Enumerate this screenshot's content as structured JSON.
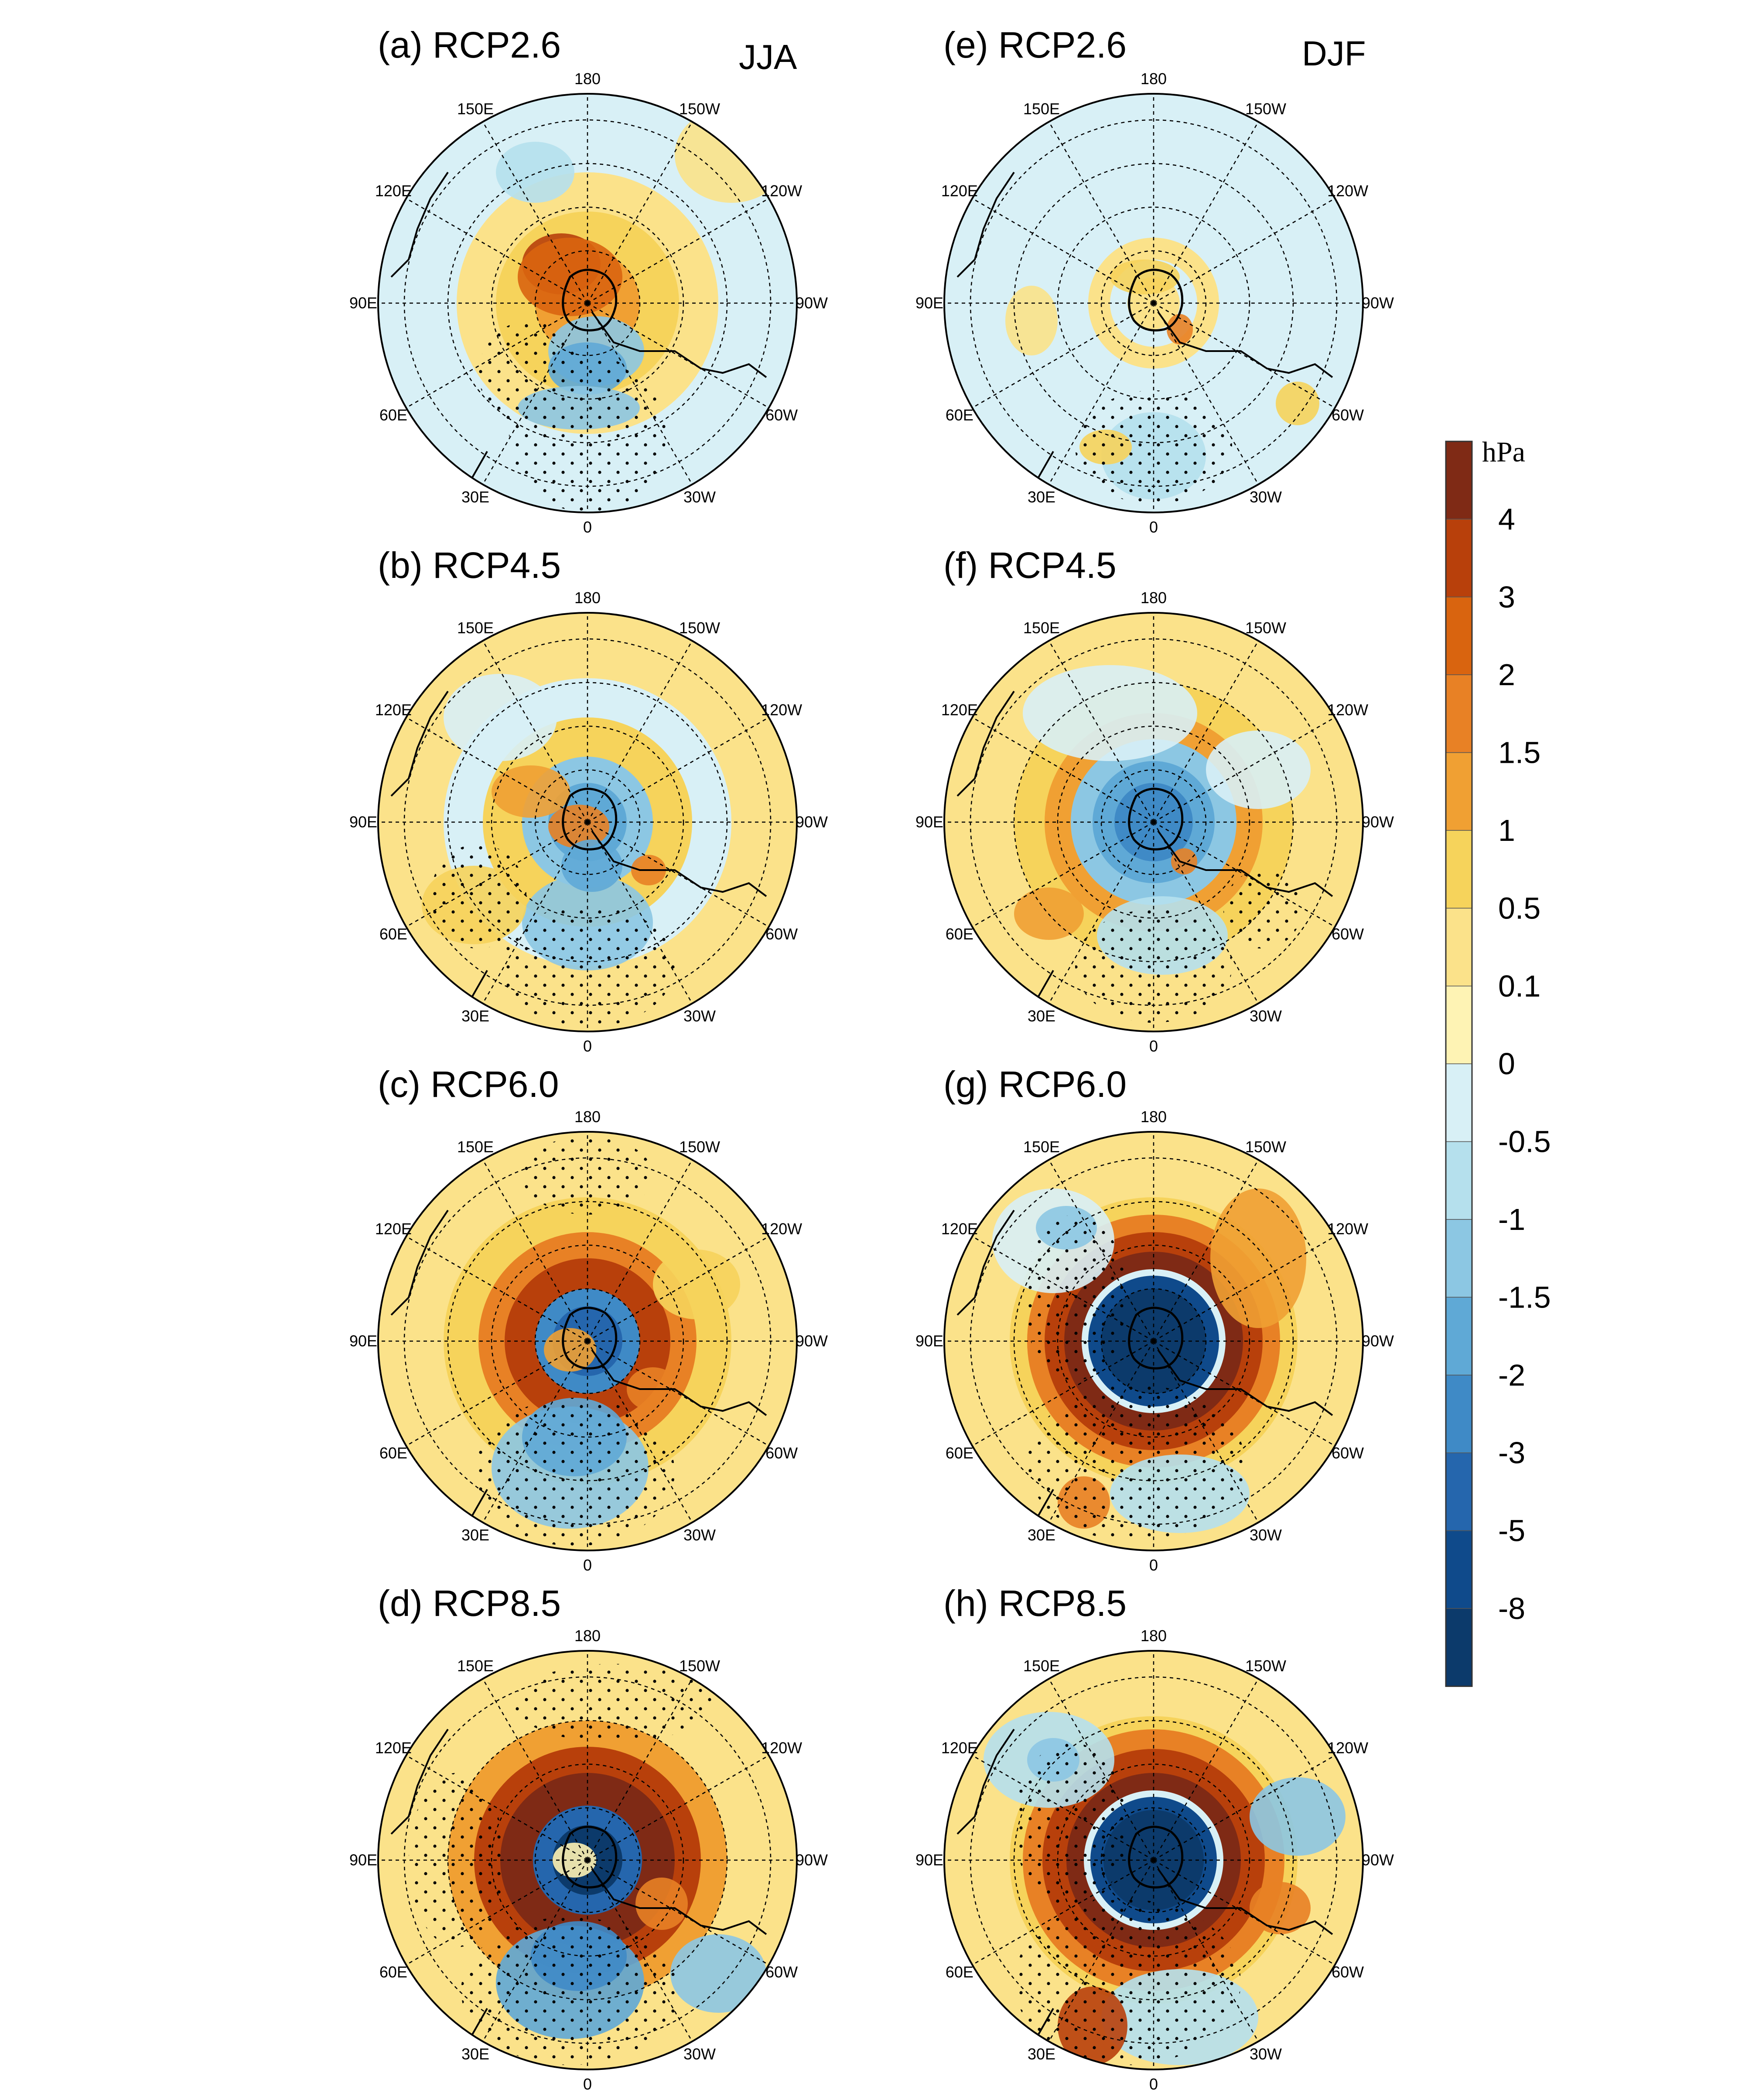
{
  "figure": {
    "seasons": [
      "JJA",
      "DJF"
    ],
    "panels": [
      {
        "id": "a",
        "title": "(a) RCP2.6",
        "season": "JJA",
        "scenario": "RCP2.6"
      },
      {
        "id": "b",
        "title": "(b) RCP4.5",
        "season": "JJA",
        "scenario": "RCP4.5"
      },
      {
        "id": "c",
        "title": "(c) RCP6.0",
        "season": "JJA",
        "scenario": "RCP6.0"
      },
      {
        "id": "d",
        "title": "(d) RCP8.5",
        "season": "JJA",
        "scenario": "RCP8.5"
      },
      {
        "id": "e",
        "title": "(e) RCP2.6",
        "season": "DJF",
        "scenario": "RCP2.6"
      },
      {
        "id": "f",
        "title": "(f) RCP4.5",
        "season": "DJF",
        "scenario": "RCP4.5"
      },
      {
        "id": "g",
        "title": "(g) RCP6.0",
        "season": "DJF",
        "scenario": "RCP6.0"
      },
      {
        "id": "h",
        "title": "(h) RCP8.5",
        "season": "DJF",
        "scenario": "RCP8.5"
      }
    ],
    "longitude_labels": [
      "180",
      "150W",
      "120W",
      "90W",
      "60W",
      "30W",
      "0",
      "30E",
      "60E",
      "90E",
      "120E",
      "150E"
    ],
    "projection": "south polar stereographic"
  },
  "colorbar": {
    "unit": "hPa",
    "tick_labels": [
      "4",
      "3",
      "2",
      "1.5",
      "1",
      "0.5",
      "0.1",
      "0",
      "-0.5",
      "-1",
      "-1.5",
      "-2",
      "-3",
      "-5",
      "-8"
    ],
    "colors": [
      "#7f2a15",
      "#b8400b",
      "#d9640f",
      "#e88125",
      "#f0a033",
      "#f6d35b",
      "#fbe28a",
      "#fef3b4",
      "#d8f0f6",
      "#b5e0ed",
      "#8cc7e3",
      "#5fa9d6",
      "#3f8ac6",
      "#2566ad",
      "#0f4a8b",
      "#0c3a6b"
    ]
  },
  "chart_data": {
    "type": "heatmap",
    "description_kind": "polar contour maps of sea-level pressure change",
    "unit": "hPa",
    "levels": [
      -8,
      -5,
      -3,
      -2,
      -1.5,
      -1,
      -0.5,
      0,
      0.1,
      0.5,
      1,
      1.5,
      2,
      3,
      4
    ],
    "panels": [
      {
        "id": "a",
        "season": "JJA",
        "scenario": "RCP2.6",
        "center": "mixed",
        "ring": "+1 to +2 around 150E-180",
        "outer": "0 to -1"
      },
      {
        "id": "b",
        "season": "JJA",
        "scenario": "RCP4.5",
        "center": "-1.5 to -2",
        "ring": "+0.5 to +1.5",
        "outer": "+0.1 to -0.5"
      },
      {
        "id": "c",
        "season": "JJA",
        "scenario": "RCP6.0",
        "center": "-3 to -5",
        "ring": "+1.5 to +3",
        "outer": "+0.1 to -1"
      },
      {
        "id": "d",
        "season": "JJA",
        "scenario": "RCP8.5",
        "center": "-5 to -8",
        "ring": "+3 to +4",
        "outer": "+0.1 to -1.5"
      },
      {
        "id": "e",
        "season": "DJF",
        "scenario": "RCP2.6",
        "center": "+0.1 to +0.5",
        "ring": "0 to +0.5",
        "outer": "0 to -0.5"
      },
      {
        "id": "f",
        "season": "DJF",
        "scenario": "RCP4.5",
        "center": "-1.5 to -3",
        "ring": "+0.5 to +1.5",
        "outer": "0 to +0.5"
      },
      {
        "id": "g",
        "season": "DJF",
        "scenario": "RCP6.0",
        "center": "-8",
        "ring": "+3 to +4",
        "outer": "+0.1 to +1"
      },
      {
        "id": "h",
        "season": "DJF",
        "scenario": "RCP8.5",
        "center": "-8",
        "ring": "+3 to +4",
        "outer": "+0.1 to +1"
      }
    ]
  }
}
